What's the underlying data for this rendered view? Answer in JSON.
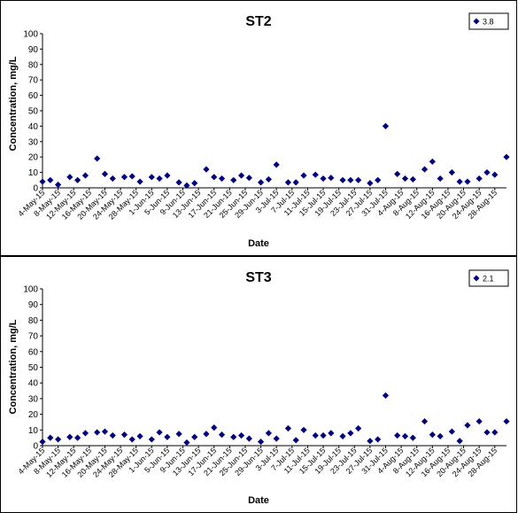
{
  "chart_data": [
    {
      "type": "scatter",
      "title": "ST2",
      "xlabel": "Date",
      "ylabel": "Concentration, mg/L",
      "ylim": [
        0,
        100
      ],
      "yticks": [
        0,
        10,
        20,
        30,
        40,
        50,
        60,
        70,
        80,
        90,
        100
      ],
      "xlim": [
        "2015-05-04",
        "2015-08-31"
      ],
      "xtick_labels": [
        "4-May-15",
        "8-May-15",
        "12-May-15",
        "16-May-15",
        "20-May-15",
        "24-May-15",
        "28-May-15",
        "1-Jun-15",
        "5-Jun-15",
        "9-Jun-15",
        "13-Jun-15",
        "17-Jun-15",
        "21-Jun-15",
        "25-Jun-15",
        "29-Jun-15",
        "3-Jul-15",
        "7-Jul-15",
        "11-Jul-15",
        "15-Jul-15",
        "19-Jul-15",
        "23-Jul-15",
        "27-Jul-15",
        "31-Jul-15",
        "4-Aug-15",
        "8-Aug-15",
        "12-Aug-15",
        "16-Aug-15",
        "20-Aug-15",
        "24-Aug-15",
        "28-Aug-15"
      ],
      "legend_position": "top-right",
      "grid": false,
      "marker": "diamond",
      "series": [
        {
          "name": "3.8",
          "color": "#000080",
          "points": [
            {
              "x": "2015-05-04",
              "y": 4
            },
            {
              "x": "2015-05-06",
              "y": 5
            },
            {
              "x": "2015-05-08",
              "y": 2
            },
            {
              "x": "2015-05-11",
              "y": 7
            },
            {
              "x": "2015-05-13",
              "y": 5
            },
            {
              "x": "2015-05-15",
              "y": 8
            },
            {
              "x": "2015-05-18",
              "y": 19
            },
            {
              "x": "2015-05-20",
              "y": 9
            },
            {
              "x": "2015-05-22",
              "y": 6
            },
            {
              "x": "2015-05-25",
              "y": 7
            },
            {
              "x": "2015-05-27",
              "y": 7.5
            },
            {
              "x": "2015-05-29",
              "y": 4
            },
            {
              "x": "2015-06-01",
              "y": 7
            },
            {
              "x": "2015-06-03",
              "y": 6
            },
            {
              "x": "2015-06-05",
              "y": 8
            },
            {
              "x": "2015-06-08",
              "y": 3.5
            },
            {
              "x": "2015-06-10",
              "y": 1.5
            },
            {
              "x": "2015-06-12",
              "y": 3
            },
            {
              "x": "2015-06-15",
              "y": 12
            },
            {
              "x": "2015-06-17",
              "y": 7
            },
            {
              "x": "2015-06-19",
              "y": 6
            },
            {
              "x": "2015-06-22",
              "y": 5
            },
            {
              "x": "2015-06-24",
              "y": 8
            },
            {
              "x": "2015-06-26",
              "y": 6.5
            },
            {
              "x": "2015-06-29",
              "y": 3.5
            },
            {
              "x": "2015-07-01",
              "y": 5.5
            },
            {
              "x": "2015-07-03",
              "y": 15
            },
            {
              "x": "2015-07-06",
              "y": 3.5
            },
            {
              "x": "2015-07-08",
              "y": 3.5
            },
            {
              "x": "2015-07-10",
              "y": 8
            },
            {
              "x": "2015-07-13",
              "y": 8.5
            },
            {
              "x": "2015-07-15",
              "y": 6
            },
            {
              "x": "2015-07-17",
              "y": 6.5
            },
            {
              "x": "2015-07-20",
              "y": 5
            },
            {
              "x": "2015-07-22",
              "y": 5
            },
            {
              "x": "2015-07-24",
              "y": 5
            },
            {
              "x": "2015-07-27",
              "y": 3
            },
            {
              "x": "2015-07-29",
              "y": 5
            },
            {
              "x": "2015-07-31",
              "y": 40
            },
            {
              "x": "2015-08-03",
              "y": 9
            },
            {
              "x": "2015-08-05",
              "y": 6
            },
            {
              "x": "2015-08-07",
              "y": 5.5
            },
            {
              "x": "2015-08-10",
              "y": 12
            },
            {
              "x": "2015-08-12",
              "y": 17
            },
            {
              "x": "2015-08-14",
              "y": 6
            },
            {
              "x": "2015-08-17",
              "y": 10
            },
            {
              "x": "2015-08-19",
              "y": 4
            },
            {
              "x": "2015-08-21",
              "y": 4
            },
            {
              "x": "2015-08-24",
              "y": 6
            },
            {
              "x": "2015-08-26",
              "y": 10
            },
            {
              "x": "2015-08-28",
              "y": 8.5
            },
            {
              "x": "2015-08-31",
              "y": 20
            }
          ]
        }
      ]
    },
    {
      "type": "scatter",
      "title": "ST3",
      "xlabel": "Date",
      "ylabel": "Concentration, mg/L",
      "ylim": [
        0,
        100
      ],
      "yticks": [
        0,
        10,
        20,
        30,
        40,
        50,
        60,
        70,
        80,
        90,
        100
      ],
      "xlim": [
        "2015-05-04",
        "2015-08-31"
      ],
      "xtick_labels": [
        "4-May-15",
        "8-May-15",
        "12-May-15",
        "16-May-15",
        "20-May-15",
        "24-May-15",
        "28-May-15",
        "1-Jun-15",
        "5-Jun-15",
        "9-Jun-15",
        "13-Jun-15",
        "17-Jun-15",
        "21-Jun-15",
        "25-Jun-15",
        "29-Jun-15",
        "3-Jul-15",
        "7-Jul-15",
        "11-Jul-15",
        "15-Jul-15",
        "19-Jul-15",
        "23-Jul-15",
        "27-Jul-15",
        "31-Jul-15",
        "4-Aug-15",
        "8-Aug-15",
        "12-Aug-15",
        "16-Aug-15",
        "20-Aug-15",
        "24-Aug-15",
        "28-Aug-15"
      ],
      "legend_position": "top-right",
      "grid": false,
      "marker": "diamond",
      "series": [
        {
          "name": "2.1",
          "color": "#000080",
          "points": [
            {
              "x": "2015-05-04",
              "y": 2.5
            },
            {
              "x": "2015-05-06",
              "y": 5
            },
            {
              "x": "2015-05-08",
              "y": 4
            },
            {
              "x": "2015-05-11",
              "y": 5.5
            },
            {
              "x": "2015-05-13",
              "y": 5
            },
            {
              "x": "2015-05-15",
              "y": 8
            },
            {
              "x": "2015-05-18",
              "y": 8.5
            },
            {
              "x": "2015-05-20",
              "y": 9
            },
            {
              "x": "2015-05-22",
              "y": 6.5
            },
            {
              "x": "2015-05-25",
              "y": 7
            },
            {
              "x": "2015-05-27",
              "y": 4
            },
            {
              "x": "2015-05-29",
              "y": 6
            },
            {
              "x": "2015-06-01",
              "y": 4
            },
            {
              "x": "2015-06-03",
              "y": 8.5
            },
            {
              "x": "2015-06-05",
              "y": 5.5
            },
            {
              "x": "2015-06-08",
              "y": 7.5
            },
            {
              "x": "2015-06-10",
              "y": 2
            },
            {
              "x": "2015-06-12",
              "y": 5.5
            },
            {
              "x": "2015-06-15",
              "y": 7.5
            },
            {
              "x": "2015-06-17",
              "y": 11.5
            },
            {
              "x": "2015-06-19",
              "y": 7
            },
            {
              "x": "2015-06-22",
              "y": 5.5
            },
            {
              "x": "2015-06-24",
              "y": 6.5
            },
            {
              "x": "2015-06-26",
              "y": 4.5
            },
            {
              "x": "2015-06-29",
              "y": 2.5
            },
            {
              "x": "2015-07-01",
              "y": 8
            },
            {
              "x": "2015-07-03",
              "y": 4.5
            },
            {
              "x": "2015-07-06",
              "y": 11
            },
            {
              "x": "2015-07-08",
              "y": 3.5
            },
            {
              "x": "2015-07-10",
              "y": 10
            },
            {
              "x": "2015-07-13",
              "y": 6.5
            },
            {
              "x": "2015-07-15",
              "y": 6.5
            },
            {
              "x": "2015-07-17",
              "y": 8
            },
            {
              "x": "2015-07-20",
              "y": 6
            },
            {
              "x": "2015-07-22",
              "y": 8
            },
            {
              "x": "2015-07-24",
              "y": 11
            },
            {
              "x": "2015-07-27",
              "y": 3
            },
            {
              "x": "2015-07-29",
              "y": 4
            },
            {
              "x": "2015-07-31",
              "y": 32
            },
            {
              "x": "2015-08-03",
              "y": 6.5
            },
            {
              "x": "2015-08-05",
              "y": 6
            },
            {
              "x": "2015-08-07",
              "y": 5
            },
            {
              "x": "2015-08-10",
              "y": 15.5
            },
            {
              "x": "2015-08-12",
              "y": 7
            },
            {
              "x": "2015-08-14",
              "y": 6
            },
            {
              "x": "2015-08-17",
              "y": 9
            },
            {
              "x": "2015-08-19",
              "y": 3
            },
            {
              "x": "2015-08-21",
              "y": 13
            },
            {
              "x": "2015-08-24",
              "y": 15.5
            },
            {
              "x": "2015-08-26",
              "y": 8.5
            },
            {
              "x": "2015-08-28",
              "y": 8.5
            },
            {
              "x": "2015-08-31",
              "y": 15.5
            }
          ]
        }
      ]
    }
  ]
}
